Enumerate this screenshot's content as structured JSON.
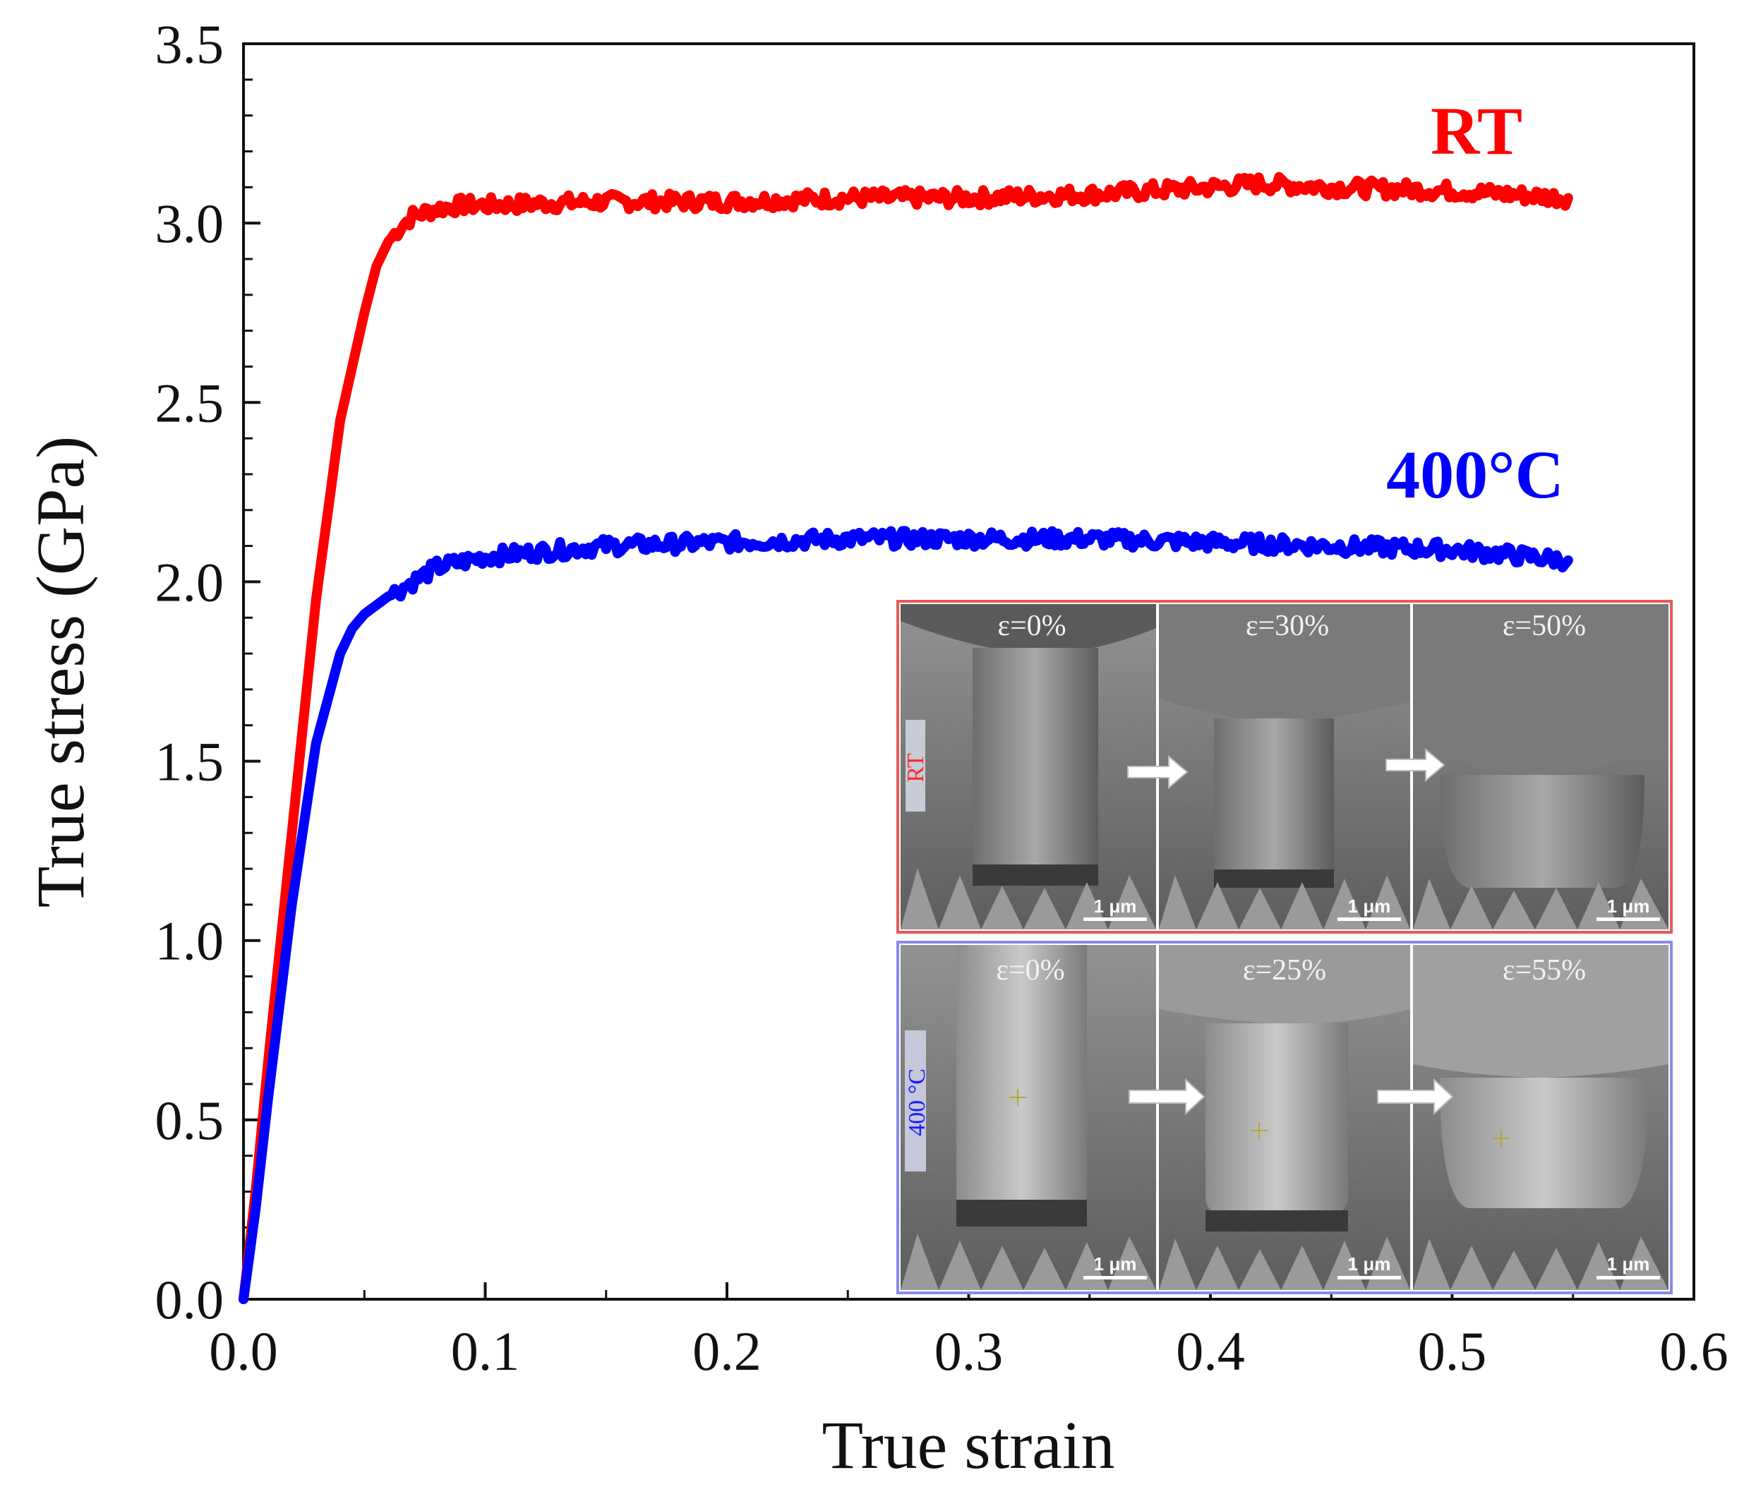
{
  "chart_data": {
    "type": "line",
    "title": "",
    "xlabel": "True strain",
    "ylabel": "True stress (GPa)",
    "xlim": [
      0.0,
      0.6
    ],
    "ylim": [
      0.0,
      3.5
    ],
    "x_ticks": [
      "0.0",
      "0.1",
      "0.2",
      "0.3",
      "0.4",
      "0.5",
      "0.6"
    ],
    "y_ticks": [
      "0.0",
      "0.5",
      "1.0",
      "1.5",
      "2.0",
      "2.5",
      "3.0",
      "3.5"
    ],
    "grid": false,
    "series": [
      {
        "name": "RT",
        "color": "#ff0000",
        "x": [
          0.0,
          0.005,
          0.01,
          0.02,
          0.03,
          0.04,
          0.05,
          0.055,
          0.06,
          0.065,
          0.07,
          0.075,
          0.08,
          0.09,
          0.1,
          0.15,
          0.2,
          0.25,
          0.3,
          0.35,
          0.4,
          0.42,
          0.45,
          0.5,
          0.548
        ],
        "y": [
          0.0,
          0.3,
          0.65,
          1.3,
          1.95,
          2.45,
          2.75,
          2.88,
          2.95,
          2.99,
          3.02,
          3.03,
          3.04,
          3.05,
          3.05,
          3.06,
          3.06,
          3.07,
          3.07,
          3.08,
          3.1,
          3.11,
          3.1,
          3.09,
          3.07
        ]
      },
      {
        "name": "400°C",
        "color": "#0000ff",
        "x": [
          0.0,
          0.005,
          0.01,
          0.02,
          0.03,
          0.04,
          0.045,
          0.05,
          0.06,
          0.07,
          0.08,
          0.1,
          0.15,
          0.2,
          0.25,
          0.3,
          0.35,
          0.4,
          0.45,
          0.5,
          0.548
        ],
        "y": [
          0.0,
          0.25,
          0.55,
          1.1,
          1.55,
          1.8,
          1.87,
          1.91,
          1.96,
          2.0,
          2.04,
          2.07,
          2.1,
          2.11,
          2.12,
          2.12,
          2.12,
          2.11,
          2.1,
          2.09,
          2.06
        ]
      }
    ],
    "annotations": [
      "RT",
      "400°C"
    ]
  },
  "inset": {
    "rt_row": {
      "label": "RT",
      "panels": [
        {
          "strain": "ε=0%",
          "scale": "1 μm"
        },
        {
          "strain": "ε=30%",
          "scale": "1 μm"
        },
        {
          "strain": "ε=50%",
          "scale": "1 μm"
        }
      ]
    },
    "ht_row": {
      "label": "400 °C",
      "panels": [
        {
          "strain": "ε=0%",
          "scale": "1 μm"
        },
        {
          "strain": "ε=25%",
          "scale": "1 μm"
        },
        {
          "strain": "ε=55%",
          "scale": "1 μm"
        }
      ]
    }
  }
}
